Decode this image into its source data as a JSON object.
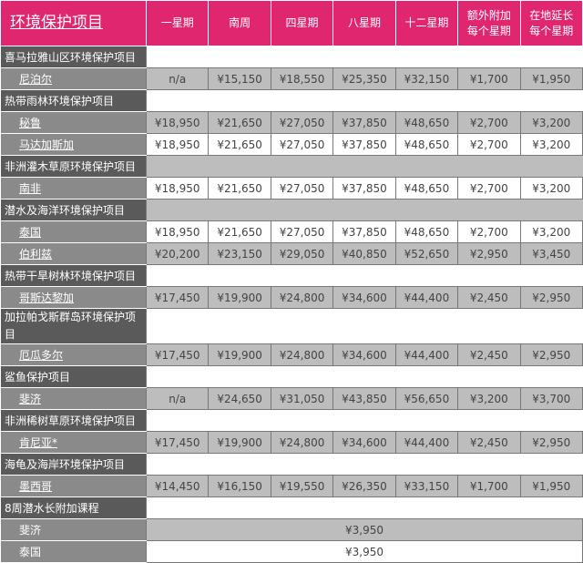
{
  "header": {
    "title": "环境保护项目",
    "columns": [
      "一星期",
      "南周",
      "四星期",
      "八星期",
      "十二星期",
      "额外附加\n每个星期",
      "在地延长\n每个星期"
    ]
  },
  "colors": {
    "header_bg": "#e0266f",
    "category_bg": "#5a5a5a",
    "country_bg": "#8a8a8a",
    "row_gray": "#bdbdbd"
  },
  "rows": [
    {
      "type": "cat",
      "label": "喜马拉雅山区环境保护项目",
      "shade": "w"
    },
    {
      "type": "cty",
      "label": "尼泊尔",
      "shade": "g",
      "link": true,
      "values": [
        "n/a",
        "¥15,150",
        "¥18,550",
        "¥25,350",
        "¥32,150",
        "¥1,700",
        "¥1,950"
      ]
    },
    {
      "type": "cat",
      "label": "热带雨林环境保护项目",
      "shade": "w"
    },
    {
      "type": "cty",
      "label": "秘鲁",
      "shade": "g",
      "link": true,
      "values": [
        "¥18,950",
        "¥21,650",
        "¥27,050",
        "¥37,850",
        "¥48,650",
        "¥2,700",
        "¥3,200"
      ]
    },
    {
      "type": "cty",
      "label": "马达加斯加",
      "shade": "w",
      "link": true,
      "values": [
        "¥18,950",
        "¥21,650",
        "¥27,050",
        "¥37,850",
        "¥48,650",
        "¥2,700",
        "¥3,200"
      ]
    },
    {
      "type": "cat",
      "label": "非洲灌木草原环境保护项目",
      "shade": "g"
    },
    {
      "type": "cty",
      "label": "南非",
      "shade": "w",
      "link": true,
      "values": [
        "¥18,950",
        "¥21,650",
        "¥27,050",
        "¥37,850",
        "¥48,650",
        "¥2,700",
        "¥3,200"
      ]
    },
    {
      "type": "cat",
      "label": "潜水及海洋环境保护项目",
      "shade": "g"
    },
    {
      "type": "cty",
      "label": "泰国",
      "shade": "w",
      "link": true,
      "values": [
        "¥18,950",
        "¥21,650",
        "¥27,050",
        "¥37,850",
        "¥48,650",
        "¥2,700",
        "¥3,200"
      ]
    },
    {
      "type": "cty",
      "label": "伯利兹",
      "shade": "g",
      "link": true,
      "values": [
        "¥20,200",
        "¥23,150",
        "¥29,050",
        "¥40,850",
        "¥52,650",
        "¥2,950",
        "¥3,450"
      ]
    },
    {
      "type": "cat",
      "label": "热带干旱树林环境保护项目",
      "shade": "w"
    },
    {
      "type": "cty",
      "label": "哥斯达黎加",
      "shade": "g",
      "link": true,
      "values": [
        "¥17,450",
        "¥19,900",
        "¥24,800",
        "¥34,600",
        "¥44,400",
        "¥2,450",
        "¥2,950"
      ]
    },
    {
      "type": "cat",
      "label": "加拉帕戈斯群岛环境保护项目",
      "shade": "w",
      "two": true
    },
    {
      "type": "cty",
      "label": "厄瓜多尔",
      "shade": "g",
      "link": true,
      "values": [
        "¥17,450",
        "¥19,900",
        "¥24,800",
        "¥34,600",
        "¥44,400",
        "¥2,450",
        "¥2,950"
      ]
    },
    {
      "type": "cat",
      "label": "鲨鱼保护项目",
      "shade": "w"
    },
    {
      "type": "cty",
      "label": "斐济",
      "shade": "g",
      "link": true,
      "values": [
        "n/a",
        "¥24,650",
        "¥31,050",
        "¥43,850",
        "¥56,650",
        "¥3,200",
        "¥3,700"
      ]
    },
    {
      "type": "cat",
      "label": "非洲稀树草原环境保护项目",
      "shade": "w"
    },
    {
      "type": "cty",
      "label": "肯尼亚*",
      "shade": "g",
      "link": true,
      "values": [
        "¥17,450",
        "¥19,900",
        "¥24,800",
        "¥34,600",
        "¥44,400",
        "¥2,450",
        "¥2,950"
      ]
    },
    {
      "type": "cat",
      "label": "海龟及海岸环境保护项目",
      "shade": "w"
    },
    {
      "type": "cty",
      "label": "墨西哥",
      "shade": "g",
      "link": true,
      "values": [
        "¥14,450",
        "¥16,150",
        "¥19,550",
        "¥26,350",
        "¥33,150",
        "¥1,700",
        "¥1,950"
      ]
    },
    {
      "type": "cat",
      "label": "8周潜水长附加课程",
      "shade": "w"
    },
    {
      "type": "span",
      "label": "斐济",
      "shade": "g",
      "value": "¥3,950"
    },
    {
      "type": "span",
      "label": "泰国",
      "shade": "w",
      "value": "¥3,950"
    }
  ]
}
